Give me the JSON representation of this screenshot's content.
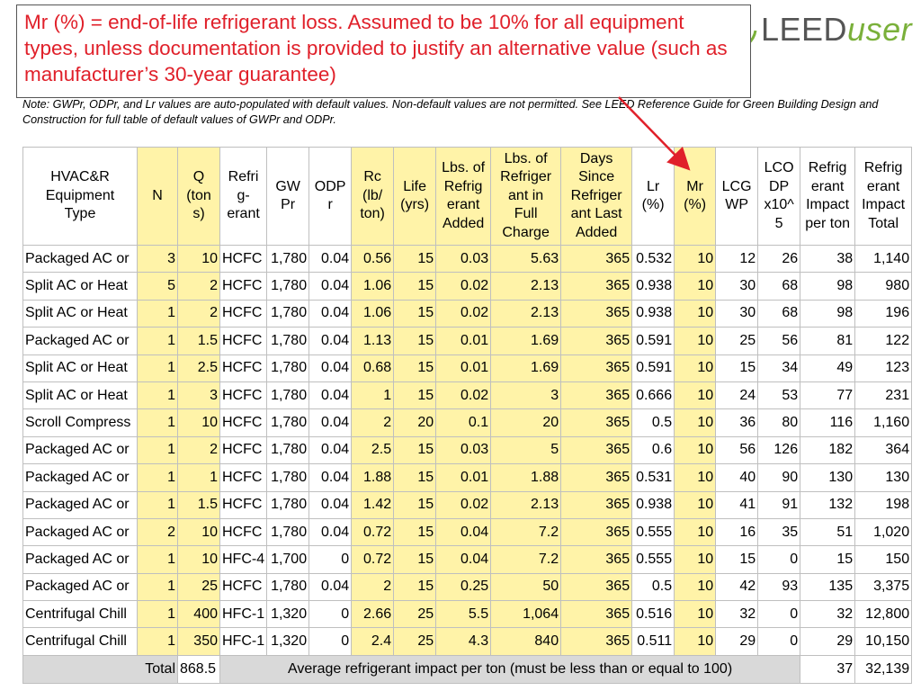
{
  "callout": "Mr (%) = end-of-life refrigerant loss. Assumed to be 10% for all equipment types, unless documentation is provided to justify an alternative value (such as manufacturer’s 30-year guarantee)",
  "logo": {
    "part1": "LEED",
    "part2": "user"
  },
  "note": "Note: GWPr, ODPr, and Lr values are auto-populated with default values. Non-default values are not permitted. See LEED Reference Guide for Green Building Design and Construction for full table of default values of GWPr and ODPr.",
  "table": {
    "header": [
      "HVAC&R\nEquipment\nType",
      "N",
      "Q\n(ton\ns)",
      "Refri\ng-\nerant",
      "GW\nPr",
      "ODP\nr",
      "Rc\n(lb/\nton)",
      "Life\n(yrs)",
      "Lbs. of\nRefrig\nerant\nAdded",
      "Lbs. of\nRefriger\nant in\nFull\nCharge",
      "Days\nSince\nRefriger\nant Last\nAdded",
      "Lr\n(%)",
      "Mr\n(%)",
      "LCG\nWP",
      "LCO\nDP\nx10^\n5",
      "Refrig\nerant\nImpact\nper ton",
      "Refrig\nerant\nImpact\nTotal"
    ],
    "rows": [
      [
        "Packaged AC or",
        "3",
        "10",
        "HCFC",
        "1,780",
        "0.04",
        "0.56",
        "15",
        "0.03",
        "5.63",
        "365",
        "0.532",
        "10",
        "12",
        "26",
        "38",
        "1,140"
      ],
      [
        "Split AC or Heat",
        "5",
        "2",
        "HCFC",
        "1,780",
        "0.04",
        "1.06",
        "15",
        "0.02",
        "2.13",
        "365",
        "0.938",
        "10",
        "30",
        "68",
        "98",
        "980"
      ],
      [
        "Split AC or Heat",
        "1",
        "2",
        "HCFC",
        "1,780",
        "0.04",
        "1.06",
        "15",
        "0.02",
        "2.13",
        "365",
        "0.938",
        "10",
        "30",
        "68",
        "98",
        "196"
      ],
      [
        "Packaged AC or",
        "1",
        "1.5",
        "HCFC",
        "1,780",
        "0.04",
        "1.13",
        "15",
        "0.01",
        "1.69",
        "365",
        "0.591",
        "10",
        "25",
        "56",
        "81",
        "122"
      ],
      [
        "Split AC or Heat",
        "1",
        "2.5",
        "HCFC",
        "1,780",
        "0.04",
        "0.68",
        "15",
        "0.01",
        "1.69",
        "365",
        "0.591",
        "10",
        "15",
        "34",
        "49",
        "123"
      ],
      [
        "Split AC or Heat",
        "1",
        "3",
        "HCFC",
        "1,780",
        "0.04",
        "1",
        "15",
        "0.02",
        "3",
        "365",
        "0.666",
        "10",
        "24",
        "53",
        "77",
        "231"
      ],
      [
        "Scroll Compress",
        "1",
        "10",
        "HCFC",
        "1,780",
        "0.04",
        "2",
        "20",
        "0.1",
        "20",
        "365",
        "0.5",
        "10",
        "36",
        "80",
        "116",
        "1,160"
      ],
      [
        "Packaged AC or",
        "1",
        "2",
        "HCFC",
        "1,780",
        "0.04",
        "2.5",
        "15",
        "0.03",
        "5",
        "365",
        "0.6",
        "10",
        "56",
        "126",
        "182",
        "364"
      ],
      [
        "Packaged AC or",
        "1",
        "1",
        "HCFC",
        "1,780",
        "0.04",
        "1.88",
        "15",
        "0.01",
        "1.88",
        "365",
        "0.531",
        "10",
        "40",
        "90",
        "130",
        "130"
      ],
      [
        "Packaged AC or",
        "1",
        "1.5",
        "HCFC",
        "1,780",
        "0.04",
        "1.42",
        "15",
        "0.02",
        "2.13",
        "365",
        "0.938",
        "10",
        "41",
        "91",
        "132",
        "198"
      ],
      [
        "Packaged AC or",
        "2",
        "10",
        "HCFC",
        "1,780",
        "0.04",
        "0.72",
        "15",
        "0.04",
        "7.2",
        "365",
        "0.555",
        "10",
        "16",
        "35",
        "51",
        "1,020"
      ],
      [
        "Packaged AC or",
        "1",
        "10",
        "HFC-4",
        "1,700",
        "0",
        "0.72",
        "15",
        "0.04",
        "7.2",
        "365",
        "0.555",
        "10",
        "15",
        "0",
        "15",
        "150"
      ],
      [
        "Packaged AC or",
        "1",
        "25",
        "HCFC",
        "1,780",
        "0.04",
        "2",
        "15",
        "0.25",
        "50",
        "365",
        "0.5",
        "10",
        "42",
        "93",
        "135",
        "3,375"
      ],
      [
        "Centrifugal Chill",
        "1",
        "400",
        "HFC-1",
        "1,320",
        "0",
        "2.66",
        "25",
        "5.5",
        "1,064",
        "365",
        "0.516",
        "10",
        "32",
        "0",
        "32",
        "12,800"
      ],
      [
        "Centrifugal Chill",
        "1",
        "350",
        "HFC-1",
        "1,320",
        "0",
        "2.4",
        "25",
        "4.3",
        "840",
        "365",
        "0.511",
        "10",
        "29",
        "0",
        "29",
        "10,150"
      ]
    ],
    "total": {
      "label": "Total",
      "tons": "868.5",
      "average_label": "Average refrigerant impact per ton (must be less than or equal to 100)",
      "average": "37",
      "sum": "32,139"
    }
  }
}
